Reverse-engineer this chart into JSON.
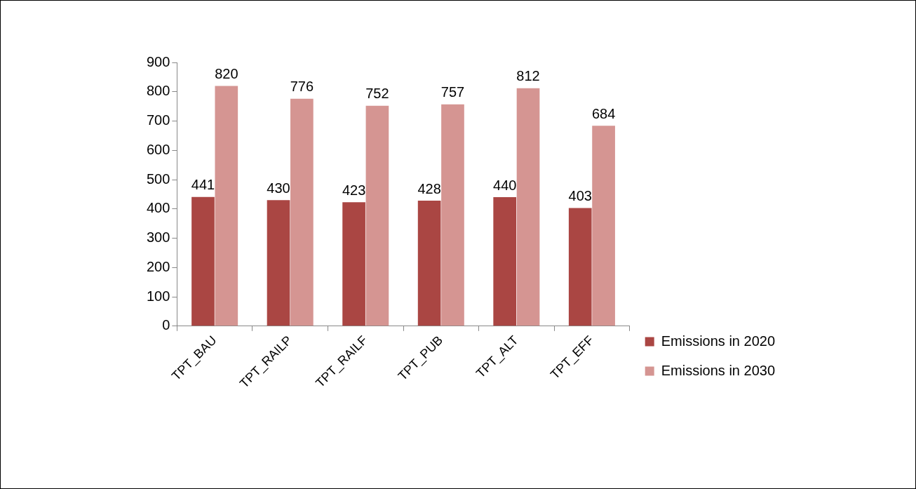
{
  "chart_data": {
    "type": "bar",
    "categories": [
      "TPT_BAU",
      "TPT_RAILP",
      "TPT_RAILF",
      "TPT_PUB",
      "TPT_ALT",
      "TPT_EFF"
    ],
    "series": [
      {
        "name": "Emissions in 2020",
        "color": "#aa4643",
        "values": [
          441,
          430,
          423,
          428,
          440,
          403
        ]
      },
      {
        "name": "Emissions in 2030",
        "color": "#d59592",
        "values": [
          820,
          776,
          752,
          757,
          812,
          684
        ]
      }
    ],
    "ylim": [
      0,
      900
    ],
    "yticks": [
      0,
      100,
      200,
      300,
      400,
      500,
      600,
      700,
      800,
      900
    ],
    "grid": false,
    "legend": "right",
    "data_labels": true
  }
}
